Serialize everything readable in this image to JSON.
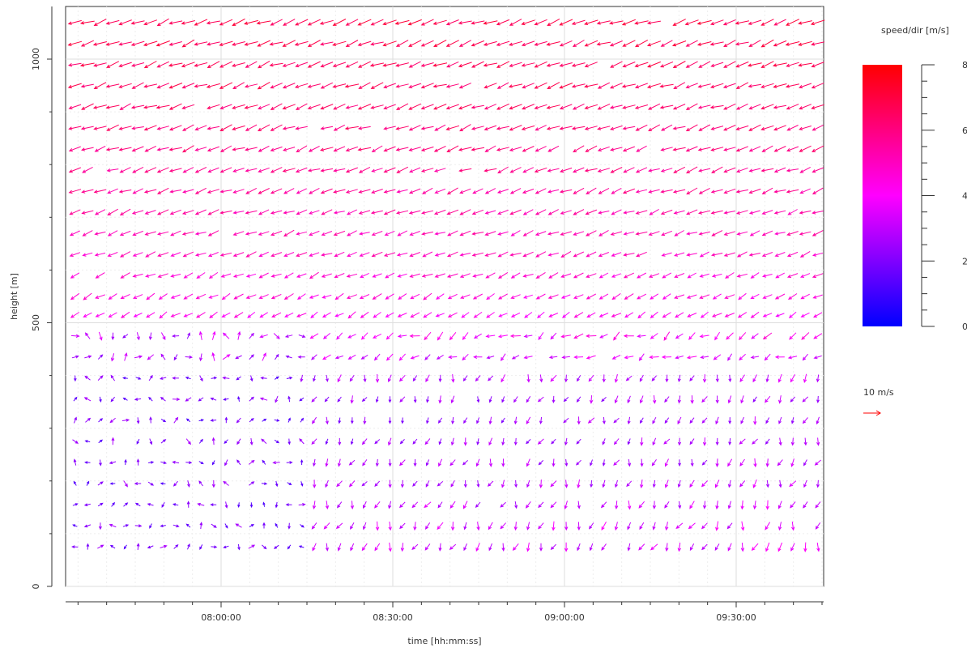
{
  "chart_data": {
    "type": "vector-field (wind barb quiver)",
    "xlabel": "time [hh:mm:ss]",
    "ylabel": "height [m]",
    "x_ticks": [
      "08:00:00",
      "08:30:00",
      "09:00:00",
      "09:30:00"
    ],
    "x_range": [
      "07:45:00",
      "09:45:00"
    ],
    "y_ticks": [
      "0",
      "500",
      "1000"
    ],
    "y_range": [
      0,
      1100
    ],
    "grid": true,
    "time_step_minutes": 2.2,
    "heights_m": [
      75,
      115,
      155,
      195,
      235,
      275,
      315,
      355,
      395,
      435,
      475,
      515,
      550,
      590,
      630,
      670,
      710,
      750,
      790,
      830,
      870,
      910,
      950,
      990,
      1030,
      1070
    ],
    "wind_speed_by_height_mps": {
      "75": 3.0,
      "115": 3.0,
      "155": 2.8,
      "195": 2.6,
      "235": 2.4,
      "275": 2.2,
      "315": 2.2,
      "355": 2.3,
      "395": 2.6,
      "435": 3.2,
      "475": 3.6,
      "515": 4.2,
      "550": 4.5,
      "590": 4.7,
      "630": 5.0,
      "670": 5.2,
      "710": 5.4,
      "750": 5.6,
      "790": 5.8,
      "830": 6.0,
      "870": 6.2,
      "910": 6.3,
      "950": 6.5,
      "990": 6.6,
      "1030": 6.7,
      "1070": 6.8
    },
    "wind_direction_notes": "Upper levels (>500 m): winds from east-northeast (arrows point west-southwest). Lower levels (<500 m): weak, variable winds; after ~08:20 mostly from the north (arrows point down).",
    "colorbar": {
      "title": "speed/dir [m/s]",
      "min": 0,
      "max": 8,
      "tick_labels": [
        "0",
        "2",
        "4",
        "6",
        "8"
      ],
      "colors": [
        "#0000ff",
        "#8000ff",
        "#ff00ff",
        "#ff0080",
        "#ff0000"
      ]
    },
    "reference_arrow": {
      "label": "10 m/s",
      "speed": 10,
      "color": "#ff0000"
    }
  }
}
